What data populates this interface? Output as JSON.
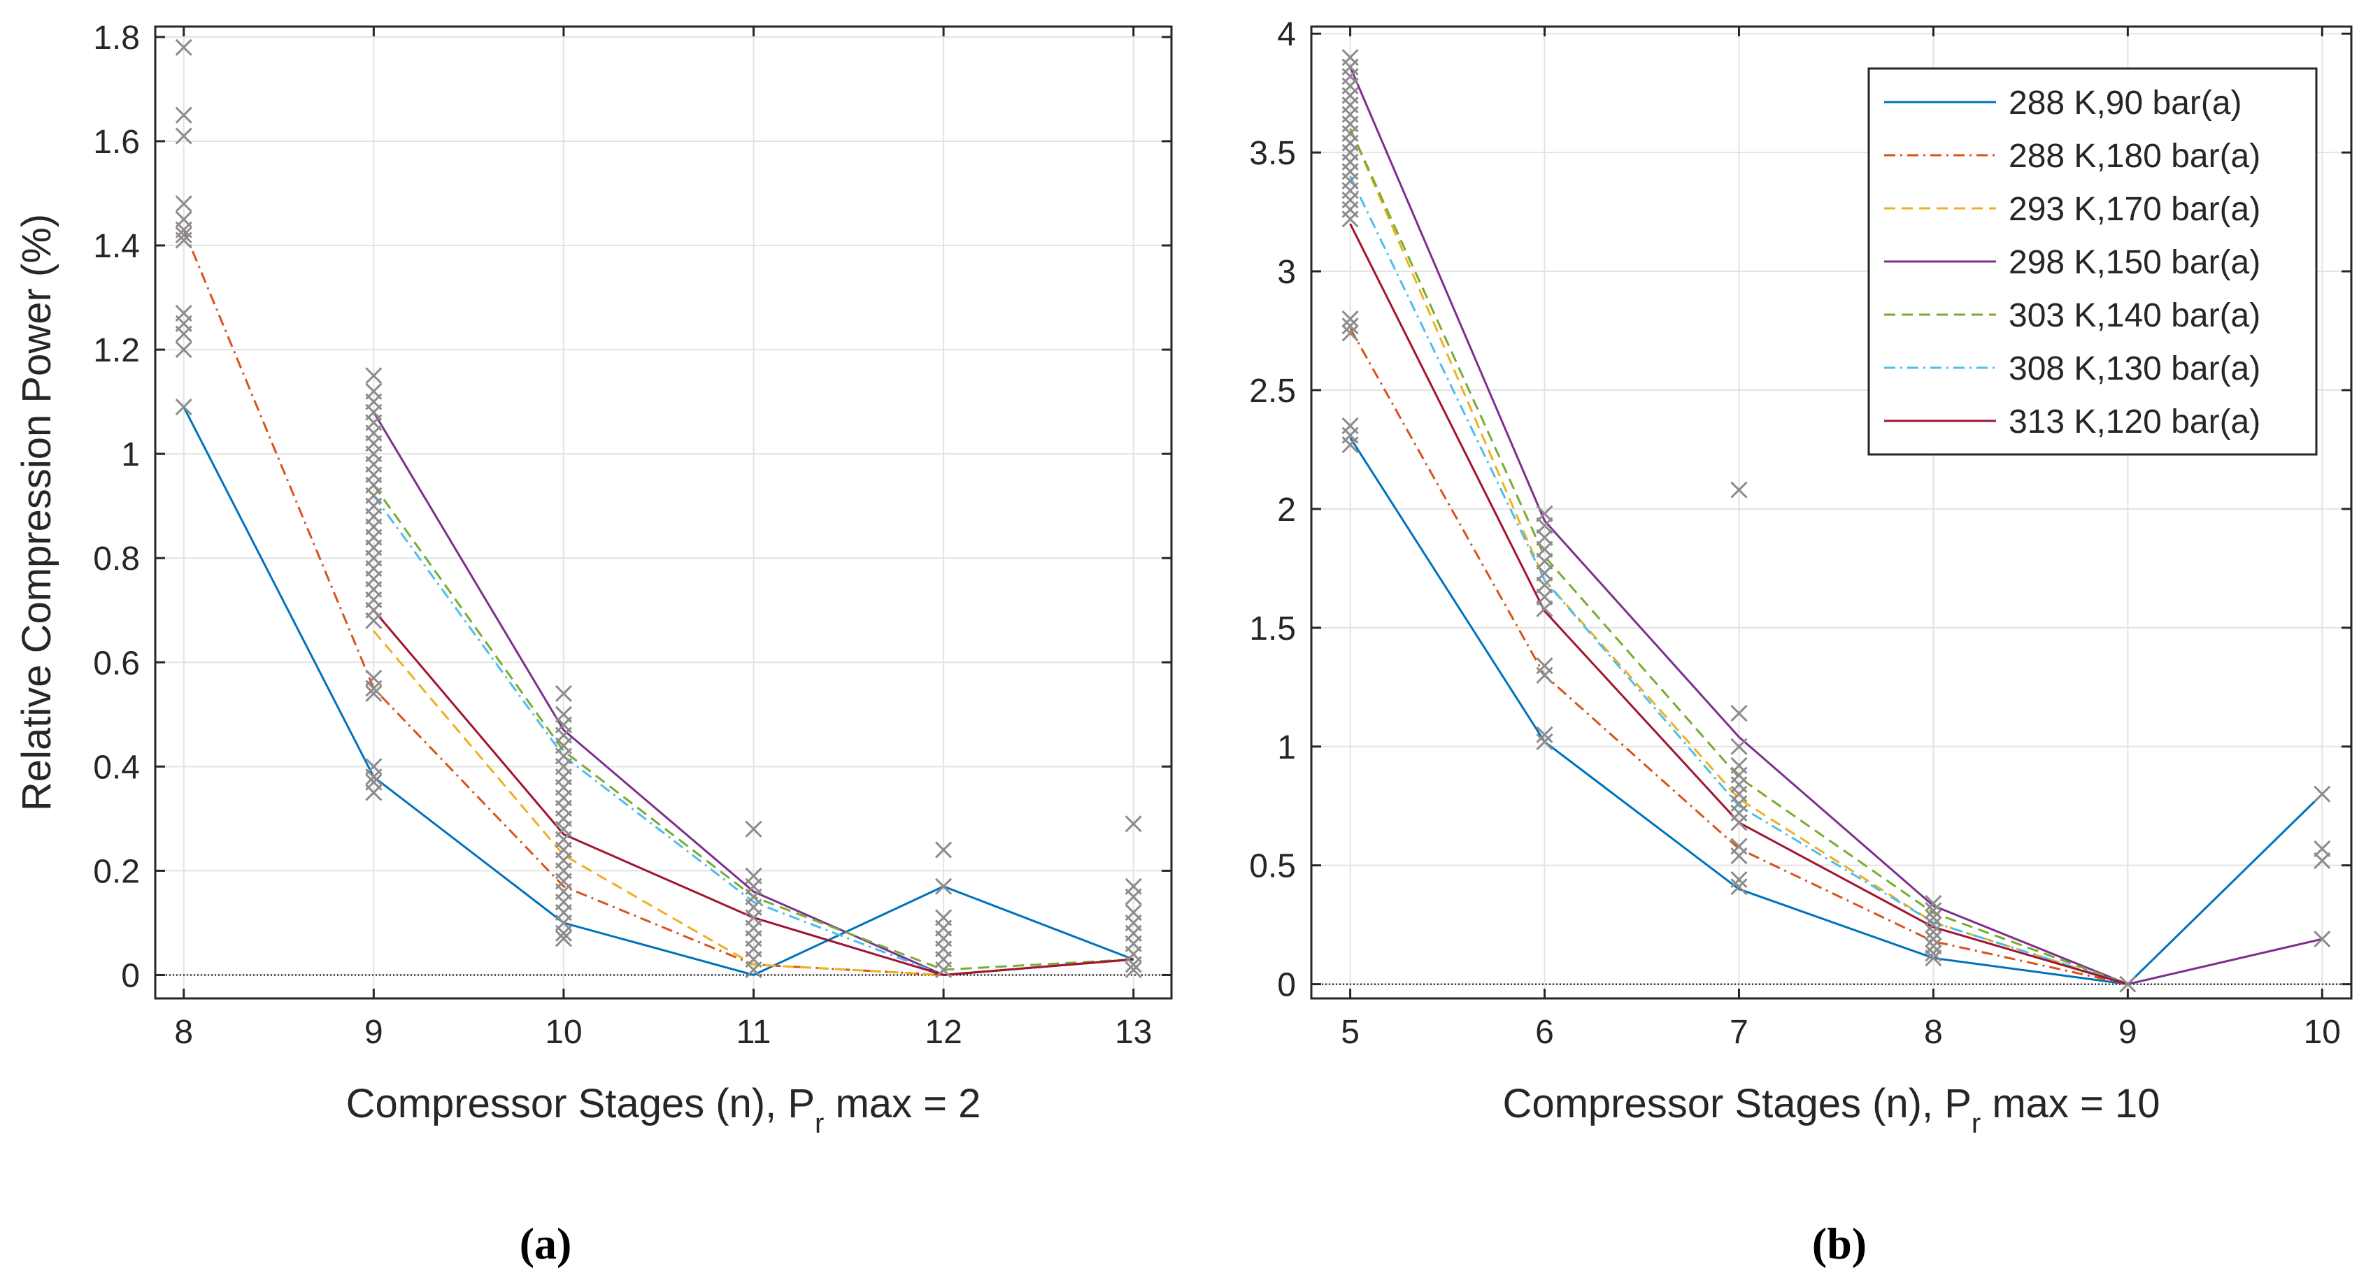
{
  "colors": {
    "s1": "#0072BD",
    "s2": "#D95319",
    "s3": "#EDB120",
    "s4": "#7E2F8E",
    "s5": "#77AC30",
    "s6": "#4DBEEE",
    "s7": "#A2142F",
    "marker": "#8c8c8c",
    "grid": "#e3e3e3",
    "axis": "#262626"
  },
  "chart_data": [
    {
      "type": "line",
      "panel_label": "(a)",
      "xlabel": "Compressor Stages (n), P",
      "xlabel_sub": "r",
      "xlabel_tail": " max = 2",
      "ylabel": "Relative Compression Power (%)",
      "xlim": [
        7.85,
        13.2
      ],
      "ylim": [
        -0.045,
        1.82
      ],
      "xticks": [
        8,
        9,
        10,
        11,
        12,
        13
      ],
      "xtick_labels": [
        "8",
        "9",
        "10",
        "11",
        "12",
        "13"
      ],
      "yticks": [
        0,
        0.2,
        0.4,
        0.6,
        0.8,
        1,
        1.2,
        1.4,
        1.6,
        1.8
      ],
      "ytick_labels": [
        "0",
        "0.2",
        "0.4",
        "0.6",
        "0.8",
        "1",
        "1.2",
        "1.4",
        "1.6",
        "1.8"
      ],
      "grid": true,
      "x": [
        8,
        9,
        10,
        11,
        12,
        13
      ],
      "series": [
        {
          "name": "288 K,90 bar(a)",
          "values": [
            1.09,
            0.38,
            0.1,
            0.0,
            0.17,
            0.03
          ],
          "style": "solid"
        },
        {
          "name": "288 K,180 bar(a)",
          "values": [
            1.43,
            0.55,
            0.17,
            0.02,
            0.0,
            0.03
          ],
          "style": "dashdot"
        },
        {
          "name": "293 K,170 bar(a)",
          "values": [
            null,
            0.66,
            0.23,
            0.02,
            0.0,
            0.03
          ],
          "style": "dashed"
        },
        {
          "name": "298 K,150 bar(a)",
          "values": [
            null,
            1.08,
            0.47,
            0.16,
            0.0,
            0.03
          ],
          "style": "solid"
        },
        {
          "name": "303 K,140 bar(a)",
          "values": [
            null,
            0.94,
            0.43,
            0.15,
            0.01,
            0.03
          ],
          "style": "dashed"
        },
        {
          "name": "308 K,130 bar(a)",
          "values": [
            null,
            0.92,
            0.42,
            0.14,
            0.0,
            0.03
          ],
          "style": "dashdot"
        },
        {
          "name": "313 K,120 bar(a)",
          "values": [
            null,
            0.7,
            0.27,
            0.11,
            0.0,
            0.03
          ],
          "style": "solid"
        }
      ],
      "markers": [
        [
          8,
          1.78
        ],
        [
          8,
          1.65
        ],
        [
          8,
          1.61
        ],
        [
          8,
          1.48
        ],
        [
          8,
          1.45
        ],
        [
          8,
          1.43
        ],
        [
          8,
          1.42
        ],
        [
          8,
          1.41
        ],
        [
          8,
          1.27
        ],
        [
          8,
          1.25
        ],
        [
          8,
          1.23
        ],
        [
          8,
          1.2
        ],
        [
          8,
          1.09
        ],
        [
          9,
          1.15
        ],
        [
          9,
          1.12
        ],
        [
          9,
          1.1
        ],
        [
          9,
          1.08
        ],
        [
          9,
          1.06
        ],
        [
          9,
          1.04
        ],
        [
          9,
          1.02
        ],
        [
          9,
          1.0
        ],
        [
          9,
          0.98
        ],
        [
          9,
          0.96
        ],
        [
          9,
          0.94
        ],
        [
          9,
          0.92
        ],
        [
          9,
          0.9
        ],
        [
          9,
          0.88
        ],
        [
          9,
          0.86
        ],
        [
          9,
          0.84
        ],
        [
          9,
          0.82
        ],
        [
          9,
          0.8
        ],
        [
          9,
          0.78
        ],
        [
          9,
          0.76
        ],
        [
          9,
          0.74
        ],
        [
          9,
          0.72
        ],
        [
          9,
          0.7
        ],
        [
          9,
          0.68
        ],
        [
          9,
          0.57
        ],
        [
          9,
          0.55
        ],
        [
          9,
          0.54
        ],
        [
          9,
          0.4
        ],
        [
          9,
          0.38
        ],
        [
          9,
          0.37
        ],
        [
          9,
          0.35
        ],
        [
          10,
          0.54
        ],
        [
          10,
          0.5
        ],
        [
          10,
          0.48
        ],
        [
          10,
          0.46
        ],
        [
          10,
          0.44
        ],
        [
          10,
          0.42
        ],
        [
          10,
          0.4
        ],
        [
          10,
          0.38
        ],
        [
          10,
          0.36
        ],
        [
          10,
          0.34
        ],
        [
          10,
          0.32
        ],
        [
          10,
          0.3
        ],
        [
          10,
          0.28
        ],
        [
          10,
          0.26
        ],
        [
          10,
          0.24
        ],
        [
          10,
          0.22
        ],
        [
          10,
          0.2
        ],
        [
          10,
          0.18
        ],
        [
          10,
          0.16
        ],
        [
          10,
          0.14
        ],
        [
          10,
          0.12
        ],
        [
          10,
          0.1
        ],
        [
          10,
          0.08
        ],
        [
          10,
          0.07
        ],
        [
          11,
          0.28
        ],
        [
          11,
          0.19
        ],
        [
          11,
          0.17
        ],
        [
          11,
          0.15
        ],
        [
          11,
          0.13
        ],
        [
          11,
          0.11
        ],
        [
          11,
          0.09
        ],
        [
          11,
          0.07
        ],
        [
          11,
          0.05
        ],
        [
          11,
          0.03
        ],
        [
          11,
          0.01
        ],
        [
          12,
          0.24
        ],
        [
          12,
          0.17
        ],
        [
          12,
          0.11
        ],
        [
          12,
          0.09
        ],
        [
          12,
          0.07
        ],
        [
          12,
          0.05
        ],
        [
          12,
          0.03
        ],
        [
          12,
          0.01
        ],
        [
          13,
          0.29
        ],
        [
          13,
          0.17
        ],
        [
          13,
          0.15
        ],
        [
          13,
          0.12
        ],
        [
          13,
          0.1
        ],
        [
          13,
          0.08
        ],
        [
          13,
          0.06
        ],
        [
          13,
          0.04
        ],
        [
          13,
          0.02
        ],
        [
          13,
          0.01
        ]
      ]
    },
    {
      "type": "line",
      "panel_label": "(b)",
      "xlabel": "Compressor Stages (n), P",
      "xlabel_sub": "r",
      "xlabel_tail": " max = 10",
      "ylabel": "",
      "xlim": [
        4.8,
        10.15
      ],
      "ylim": [
        -0.06,
        4.03
      ],
      "xticks": [
        5,
        6,
        7,
        8,
        9,
        10
      ],
      "xtick_labels": [
        "5",
        "6",
        "7",
        "8",
        "9",
        "10"
      ],
      "yticks": [
        0,
        0.5,
        1,
        1.5,
        2,
        2.5,
        3,
        3.5,
        4
      ],
      "ytick_labels": [
        "0",
        "0.5",
        "1",
        "1.5",
        "2",
        "2.5",
        "3",
        "3.5",
        "4"
      ],
      "grid": true,
      "legend_position": "top-right",
      "x": [
        5,
        6,
        7,
        8,
        9,
        10
      ],
      "series": [
        {
          "name": "288 K,90 bar(a)",
          "values": [
            2.3,
            1.02,
            0.4,
            0.11,
            0.0,
            0.8
          ],
          "style": "solid"
        },
        {
          "name": "288 K,180 bar(a)",
          "values": [
            2.76,
            1.3,
            0.57,
            0.18,
            0.0,
            null
          ],
          "style": "dashdot"
        },
        {
          "name": "293 K,170 bar(a)",
          "values": [
            3.6,
            1.7,
            0.78,
            0.26,
            0.0,
            null
          ],
          "style": "dashed"
        },
        {
          "name": "298 K,150 bar(a)",
          "values": [
            3.86,
            1.95,
            1.04,
            0.33,
            0.0,
            0.19
          ],
          "style": "solid"
        },
        {
          "name": "303 K,140 bar(a)",
          "values": [
            3.6,
            1.8,
            0.87,
            0.3,
            0.0,
            null
          ],
          "style": "dashed"
        },
        {
          "name": "308 K,130 bar(a)",
          "values": [
            3.4,
            1.7,
            0.75,
            0.26,
            0.0,
            null
          ],
          "style": "dashdot"
        },
        {
          "name": "313 K,120 bar(a)",
          "values": [
            3.2,
            1.57,
            0.68,
            0.24,
            0.0,
            null
          ],
          "style": "solid"
        }
      ],
      "markers": [
        [
          5,
          3.9
        ],
        [
          5,
          3.86
        ],
        [
          5,
          3.82
        ],
        [
          5,
          3.78
        ],
        [
          5,
          3.74
        ],
        [
          5,
          3.7
        ],
        [
          5,
          3.66
        ],
        [
          5,
          3.62
        ],
        [
          5,
          3.58
        ],
        [
          5,
          3.54
        ],
        [
          5,
          3.5
        ],
        [
          5,
          3.46
        ],
        [
          5,
          3.42
        ],
        [
          5,
          3.38
        ],
        [
          5,
          3.34
        ],
        [
          5,
          3.3
        ],
        [
          5,
          3.26
        ],
        [
          5,
          3.22
        ],
        [
          5,
          2.8
        ],
        [
          5,
          2.77
        ],
        [
          5,
          2.74
        ],
        [
          5,
          2.35
        ],
        [
          5,
          2.31
        ],
        [
          5,
          2.27
        ],
        [
          6,
          1.98
        ],
        [
          6,
          1.93
        ],
        [
          6,
          1.88
        ],
        [
          6,
          1.83
        ],
        [
          6,
          1.78
        ],
        [
          6,
          1.73
        ],
        [
          6,
          1.68
        ],
        [
          6,
          1.63
        ],
        [
          6,
          1.58
        ],
        [
          6,
          1.34
        ],
        [
          6,
          1.3
        ],
        [
          6,
          1.05
        ],
        [
          6,
          1.02
        ],
        [
          7,
          2.08
        ],
        [
          7,
          1.14
        ],
        [
          7,
          1.0
        ],
        [
          7,
          0.92
        ],
        [
          7,
          0.88
        ],
        [
          7,
          0.84
        ],
        [
          7,
          0.8
        ],
        [
          7,
          0.76
        ],
        [
          7,
          0.72
        ],
        [
          7,
          0.68
        ],
        [
          7,
          0.58
        ],
        [
          7,
          0.54
        ],
        [
          7,
          0.44
        ],
        [
          7,
          0.41
        ],
        [
          8,
          0.34
        ],
        [
          8,
          0.31
        ],
        [
          8,
          0.28
        ],
        [
          8,
          0.25
        ],
        [
          8,
          0.22
        ],
        [
          8,
          0.19
        ],
        [
          8,
          0.16
        ],
        [
          8,
          0.13
        ],
        [
          8,
          0.11
        ],
        [
          9,
          0.0
        ],
        [
          10,
          0.8
        ],
        [
          10,
          0.57
        ],
        [
          10,
          0.52
        ],
        [
          10,
          0.19
        ]
      ]
    }
  ]
}
